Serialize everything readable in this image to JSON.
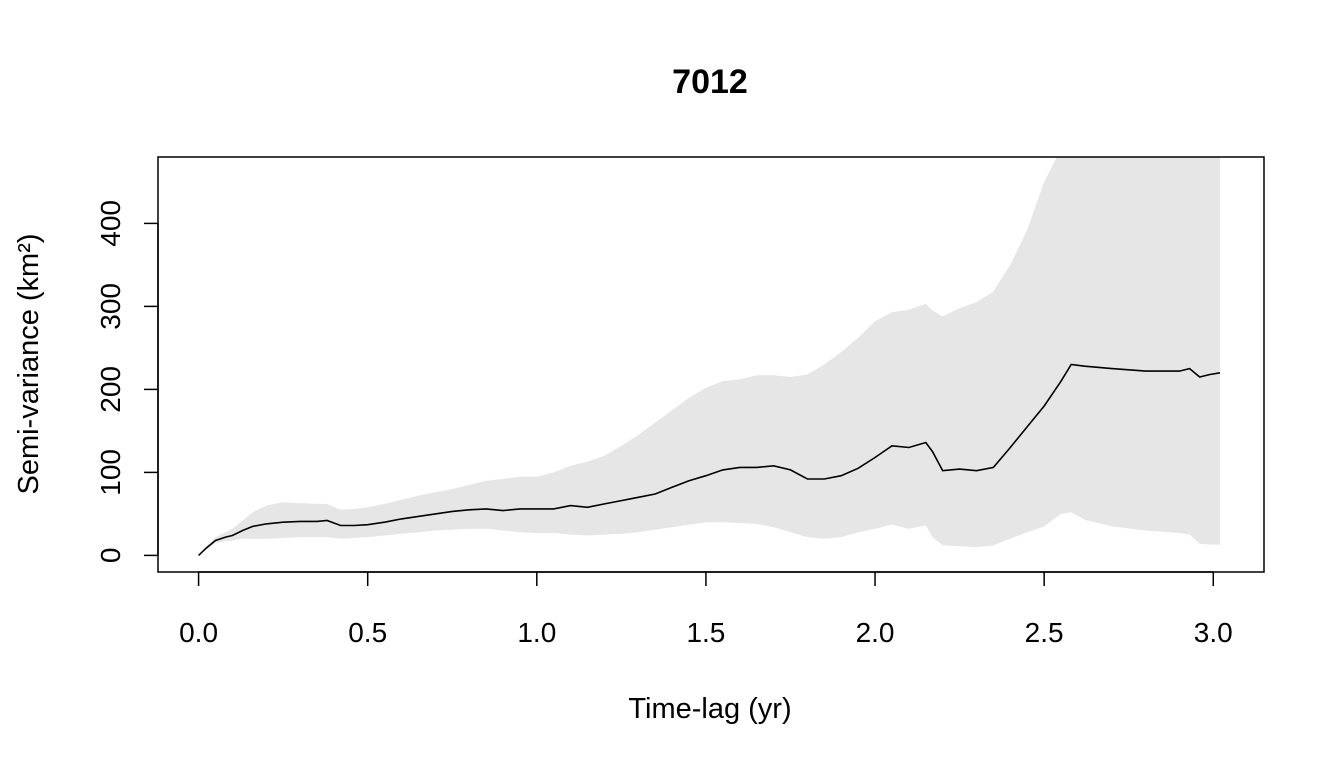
{
  "chart_data": {
    "type": "line",
    "title": "7012",
    "xlabel": "Time-lag (yr)",
    "ylabel": "Semi-variance (km²)",
    "xlim": [
      -0.12,
      3.15
    ],
    "ylim": [
      -20,
      480
    ],
    "x_ticks": [
      0.0,
      0.5,
      1.0,
      1.5,
      2.0,
      2.5,
      3.0
    ],
    "x_tick_labels": [
      "0.0",
      "0.5",
      "1.0",
      "1.5",
      "2.0",
      "2.5",
      "3.0"
    ],
    "y_ticks": [
      0,
      100,
      200,
      300,
      400
    ],
    "y_tick_labels": [
      "0",
      "100",
      "200",
      "300",
      "400"
    ],
    "grid": false,
    "band_color": "#e6e6e6",
    "line_color": "#000000",
    "series": [
      {
        "x": [
          0.0,
          0.02,
          0.05,
          0.08,
          0.1,
          0.13,
          0.16,
          0.2,
          0.25,
          0.3,
          0.35,
          0.38,
          0.42,
          0.46,
          0.5,
          0.55,
          0.6,
          0.65,
          0.7,
          0.75,
          0.8,
          0.85,
          0.9,
          0.95,
          1.0,
          1.05,
          1.1,
          1.15,
          1.2,
          1.25,
          1.3,
          1.35,
          1.4,
          1.45,
          1.5,
          1.55,
          1.6,
          1.65,
          1.7,
          1.75,
          1.8,
          1.85,
          1.9,
          1.95,
          2.0,
          2.05,
          2.1,
          2.15,
          2.17,
          2.2,
          2.25,
          2.3,
          2.35,
          2.4,
          2.45,
          2.5,
          2.55,
          2.58,
          2.62,
          2.7,
          2.8,
          2.9,
          2.93,
          2.96,
          2.99,
          3.02
        ],
        "y": [
          0,
          8,
          18,
          22,
          24,
          30,
          35,
          38,
          40,
          41,
          41,
          42,
          36,
          36,
          37,
          40,
          44,
          47,
          50,
          53,
          55,
          56,
          54,
          56,
          56,
          56,
          60,
          58,
          62,
          66,
          70,
          74,
          82,
          90,
          96,
          103,
          106,
          106,
          108,
          103,
          92,
          92,
          96,
          105,
          118,
          132,
          130,
          136,
          125,
          102,
          104,
          102,
          106,
          130,
          155,
          180,
          210,
          230,
          228,
          225,
          222,
          222,
          225,
          215,
          218,
          220
        ],
        "lower": [
          0,
          6,
          15,
          17,
          18,
          20,
          20,
          20,
          21,
          22,
          22,
          22,
          20,
          21,
          22,
          24,
          26,
          28,
          30,
          31,
          32,
          32,
          30,
          28,
          27,
          27,
          25,
          24,
          25,
          26,
          28,
          31,
          34,
          37,
          40,
          40,
          39,
          38,
          34,
          28,
          22,
          20,
          22,
          28,
          32,
          37,
          32,
          36,
          22,
          12,
          11,
          10,
          12,
          20,
          28,
          35,
          50,
          52,
          43,
          35,
          30,
          27,
          25,
          14,
          13,
          13
        ],
        "upper": [
          0,
          10,
          22,
          28,
          32,
          42,
          52,
          60,
          64,
          63,
          62,
          62,
          55,
          56,
          58,
          62,
          67,
          72,
          76,
          80,
          85,
          90,
          92,
          95,
          95,
          100,
          108,
          113,
          120,
          132,
          145,
          160,
          175,
          190,
          202,
          210,
          212,
          217,
          217,
          215,
          218,
          230,
          245,
          262,
          282,
          293,
          296,
          303,
          295,
          288,
          298,
          305,
          318,
          350,
          392,
          450,
          490,
          490,
          490,
          490,
          490,
          490,
          490,
          490,
          490,
          490
        ]
      }
    ]
  }
}
